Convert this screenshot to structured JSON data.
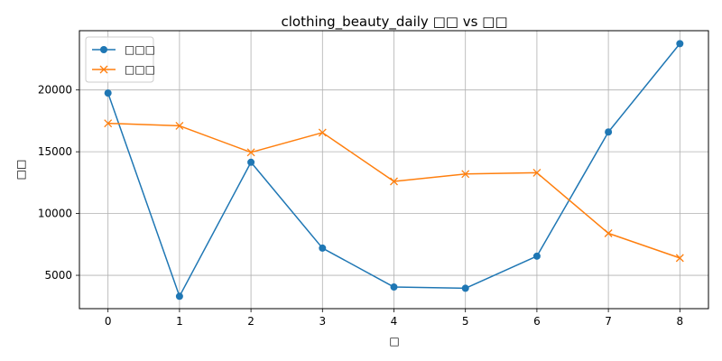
{
  "chart_data": {
    "type": "line",
    "title": "clothing_beauty_daily □□ vs □□",
    "xlabel": "□",
    "ylabel": "□□",
    "x": [
      0,
      1,
      2,
      3,
      4,
      5,
      6,
      7,
      8
    ],
    "xlim": [
      -0.4,
      8.4
    ],
    "ylim": [
      2300,
      24800
    ],
    "yticks": [
      5000,
      10000,
      15000,
      20000
    ],
    "grid": true,
    "legend_position": "top-left",
    "series": [
      {
        "name": "□□□",
        "color": "#1f77b4",
        "marker": "circle",
        "values": [
          19750,
          3300,
          14150,
          7200,
          4050,
          3950,
          6550,
          16600,
          23750
        ]
      },
      {
        "name": "□□□",
        "color": "#ff7f0e",
        "marker": "x",
        "values": [
          17300,
          17100,
          14950,
          16550,
          12600,
          13200,
          13300,
          8400,
          6400
        ]
      }
    ]
  }
}
